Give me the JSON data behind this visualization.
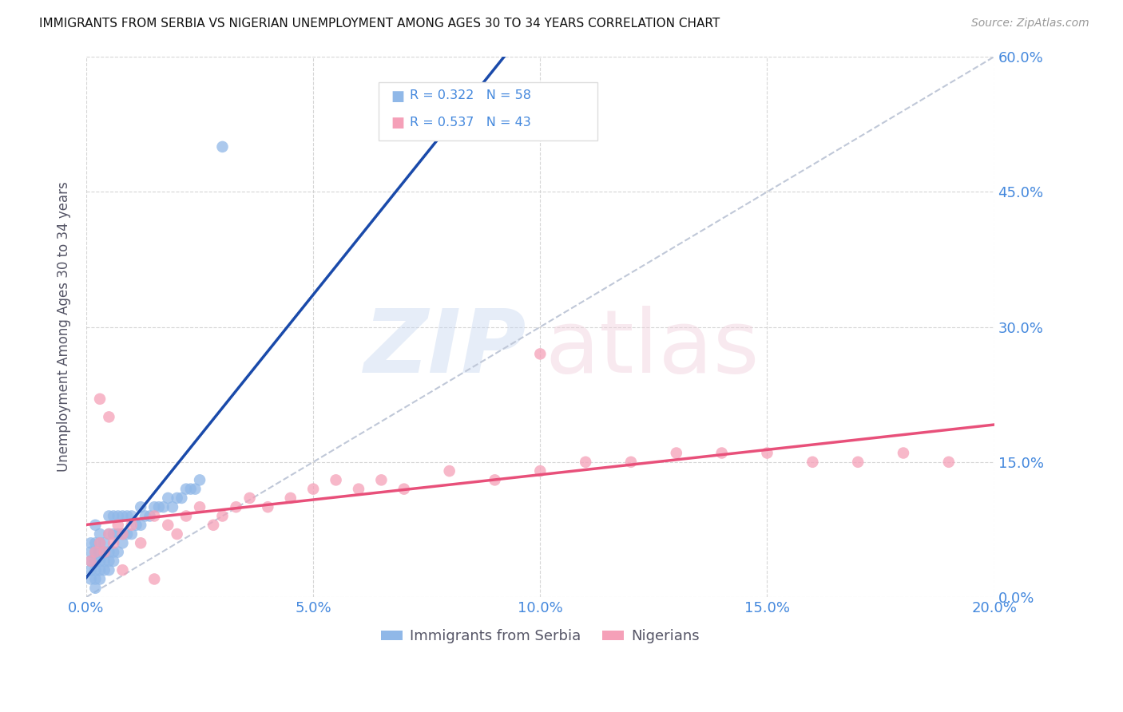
{
  "title": "IMMIGRANTS FROM SERBIA VS NIGERIAN UNEMPLOYMENT AMONG AGES 30 TO 34 YEARS CORRELATION CHART",
  "source": "Source: ZipAtlas.com",
  "ylabel": "Unemployment Among Ages 30 to 34 years",
  "xlim": [
    0.0,
    0.2
  ],
  "ylim": [
    0.0,
    0.6
  ],
  "yticks": [
    0.0,
    0.15,
    0.3,
    0.45,
    0.6
  ],
  "xticks": [
    0.0,
    0.05,
    0.1,
    0.15,
    0.2
  ],
  "serbia_R": 0.322,
  "serbia_N": 58,
  "nigeria_R": 0.537,
  "nigeria_N": 43,
  "serbia_color": "#90b8e8",
  "nigeria_color": "#f5a0b8",
  "serbia_line_color": "#1a4aaa",
  "nigeria_line_color": "#e8507a",
  "diagonal_color": "#c0c8d8",
  "tick_color": "#4488dd",
  "axis_label_color": "#555566",
  "serbia_scatter_x": [
    0.001,
    0.001,
    0.001,
    0.001,
    0.001,
    0.002,
    0.002,
    0.002,
    0.002,
    0.002,
    0.002,
    0.002,
    0.003,
    0.003,
    0.003,
    0.003,
    0.003,
    0.003,
    0.004,
    0.004,
    0.004,
    0.004,
    0.005,
    0.005,
    0.005,
    0.005,
    0.005,
    0.006,
    0.006,
    0.006,
    0.006,
    0.007,
    0.007,
    0.007,
    0.008,
    0.008,
    0.008,
    0.009,
    0.009,
    0.01,
    0.01,
    0.011,
    0.012,
    0.012,
    0.013,
    0.014,
    0.015,
    0.016,
    0.017,
    0.018,
    0.019,
    0.02,
    0.021,
    0.022,
    0.023,
    0.024,
    0.025,
    0.03
  ],
  "serbia_scatter_y": [
    0.02,
    0.03,
    0.04,
    0.05,
    0.06,
    0.01,
    0.02,
    0.03,
    0.04,
    0.05,
    0.06,
    0.08,
    0.02,
    0.03,
    0.04,
    0.05,
    0.06,
    0.07,
    0.03,
    0.04,
    0.05,
    0.06,
    0.03,
    0.04,
    0.05,
    0.07,
    0.09,
    0.04,
    0.05,
    0.07,
    0.09,
    0.05,
    0.07,
    0.09,
    0.06,
    0.07,
    0.09,
    0.07,
    0.09,
    0.07,
    0.09,
    0.08,
    0.08,
    0.1,
    0.09,
    0.09,
    0.1,
    0.1,
    0.1,
    0.11,
    0.1,
    0.11,
    0.11,
    0.12,
    0.12,
    0.12,
    0.13,
    0.5
  ],
  "nigeria_scatter_x": [
    0.001,
    0.002,
    0.003,
    0.004,
    0.005,
    0.006,
    0.007,
    0.008,
    0.01,
    0.012,
    0.015,
    0.018,
    0.02,
    0.022,
    0.025,
    0.028,
    0.03,
    0.033,
    0.036,
    0.04,
    0.045,
    0.05,
    0.055,
    0.06,
    0.065,
    0.07,
    0.08,
    0.09,
    0.1,
    0.11,
    0.12,
    0.13,
    0.14,
    0.15,
    0.16,
    0.17,
    0.18,
    0.19,
    0.1,
    0.005,
    0.003,
    0.008,
    0.015
  ],
  "nigeria_scatter_y": [
    0.04,
    0.05,
    0.06,
    0.05,
    0.07,
    0.06,
    0.08,
    0.07,
    0.08,
    0.06,
    0.09,
    0.08,
    0.07,
    0.09,
    0.1,
    0.08,
    0.09,
    0.1,
    0.11,
    0.1,
    0.11,
    0.12,
    0.13,
    0.12,
    0.13,
    0.12,
    0.14,
    0.13,
    0.14,
    0.15,
    0.15,
    0.16,
    0.16,
    0.16,
    0.15,
    0.15,
    0.16,
    0.15,
    0.27,
    0.2,
    0.22,
    0.03,
    0.02
  ]
}
